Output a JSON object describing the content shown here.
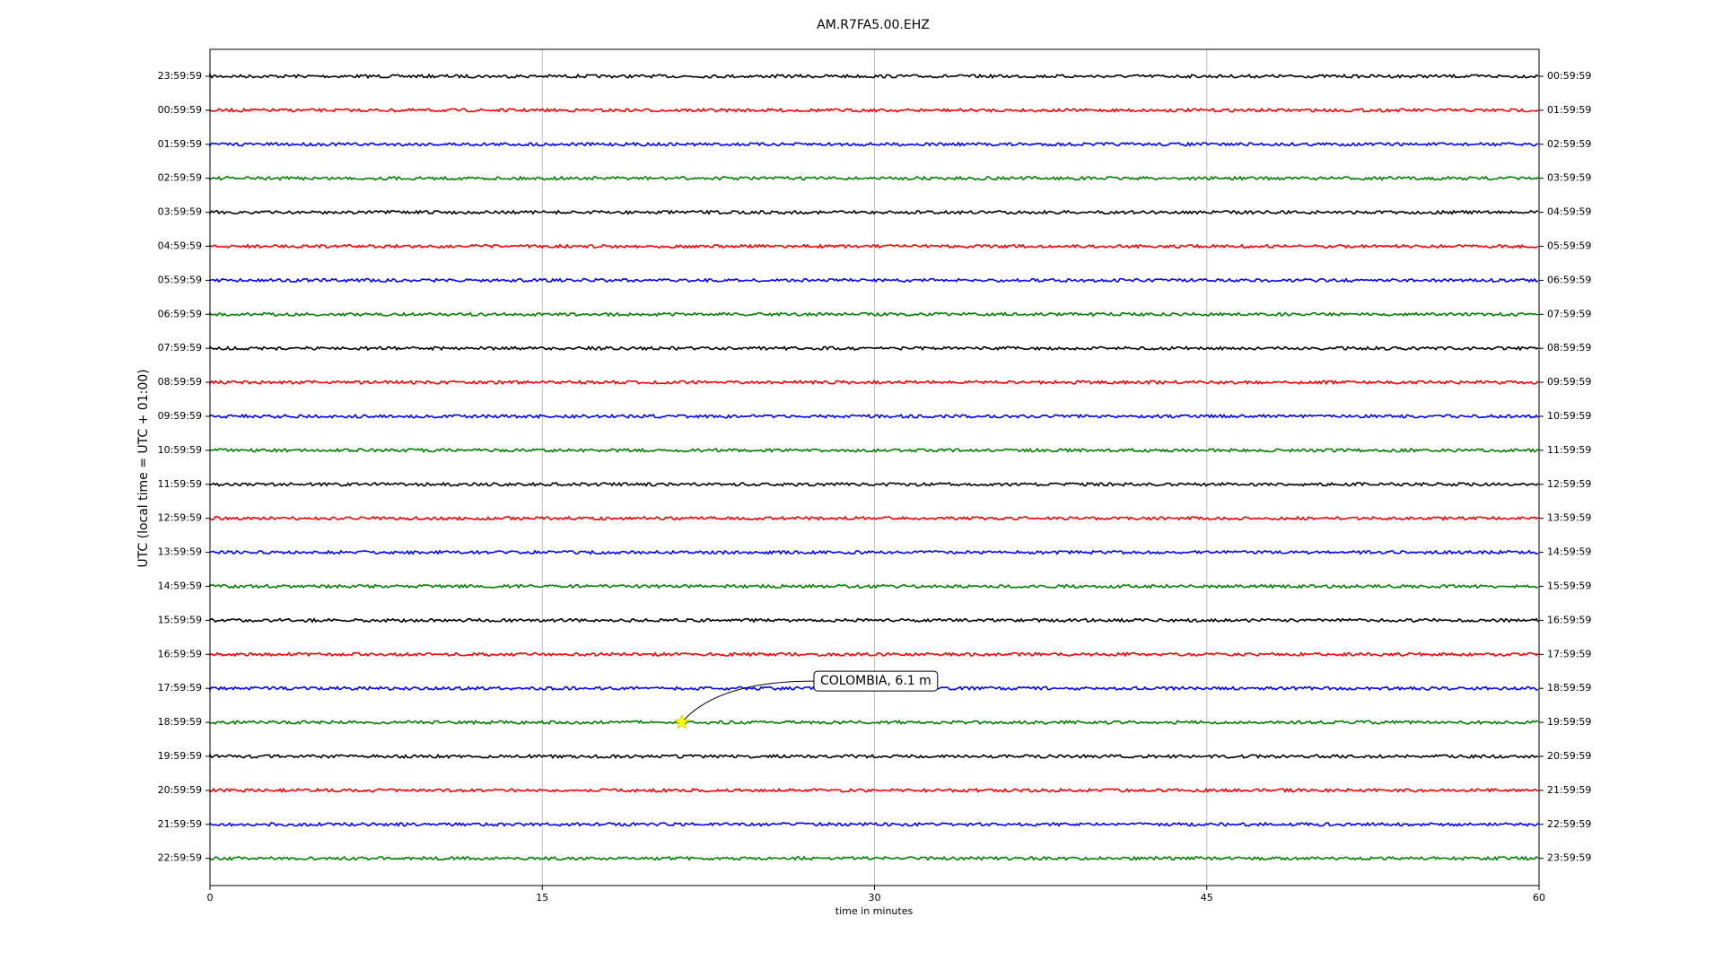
{
  "chart_data": {
    "type": "dayplot",
    "title": "AM.R7FA5.00.EHZ",
    "x_label": "time in minutes",
    "y_label": "UTC (local time = UTC + 01:00)",
    "xlim": [
      0,
      60
    ],
    "xticks": [
      0,
      15,
      30,
      45,
      60
    ],
    "grid": true,
    "series": [
      {
        "name": "23:59:59",
        "right_label": "00:59:59",
        "color": "#000000"
      },
      {
        "name": "00:59:59",
        "right_label": "01:59:59",
        "color": "#ff0000"
      },
      {
        "name": "01:59:59",
        "right_label": "02:59:59",
        "color": "#0000ff"
      },
      {
        "name": "02:59:59",
        "right_label": "03:59:59",
        "color": "#008000"
      },
      {
        "name": "03:59:59",
        "right_label": "04:59:59",
        "color": "#000000"
      },
      {
        "name": "04:59:59",
        "right_label": "05:59:59",
        "color": "#ff0000"
      },
      {
        "name": "05:59:59",
        "right_label": "06:59:59",
        "color": "#0000ff"
      },
      {
        "name": "06:59:59",
        "right_label": "07:59:59",
        "color": "#008000"
      },
      {
        "name": "07:59:59",
        "right_label": "08:59:59",
        "color": "#000000"
      },
      {
        "name": "08:59:59",
        "right_label": "09:59:59",
        "color": "#ff0000"
      },
      {
        "name": "09:59:59",
        "right_label": "10:59:59",
        "color": "#0000ff"
      },
      {
        "name": "10:59:59",
        "right_label": "11:59:59",
        "color": "#008000"
      },
      {
        "name": "11:59:59",
        "right_label": "12:59:59",
        "color": "#000000"
      },
      {
        "name": "12:59:59",
        "right_label": "13:59:59",
        "color": "#ff0000"
      },
      {
        "name": "13:59:59",
        "right_label": "14:59:59",
        "color": "#0000ff"
      },
      {
        "name": "14:59:59",
        "right_label": "15:59:59",
        "color": "#008000"
      },
      {
        "name": "15:59:59",
        "right_label": "16:59:59",
        "color": "#000000"
      },
      {
        "name": "16:59:59",
        "right_label": "17:59:59",
        "color": "#ff0000"
      },
      {
        "name": "17:59:59",
        "right_label": "18:59:59",
        "color": "#0000ff"
      },
      {
        "name": "18:59:59",
        "right_label": "19:59:59",
        "color": "#008000",
        "event": {
          "x": 21.3,
          "label": "COLOMBIA, 6.1 m"
        }
      },
      {
        "name": "19:59:59",
        "right_label": "20:59:59",
        "color": "#000000"
      },
      {
        "name": "20:59:59",
        "right_label": "21:59:59",
        "color": "#ff0000"
      },
      {
        "name": "21:59:59",
        "right_label": "22:59:59",
        "color": "#0000ff"
      },
      {
        "name": "22:59:59",
        "right_label": "23:59:59",
        "color": "#008000"
      }
    ]
  }
}
